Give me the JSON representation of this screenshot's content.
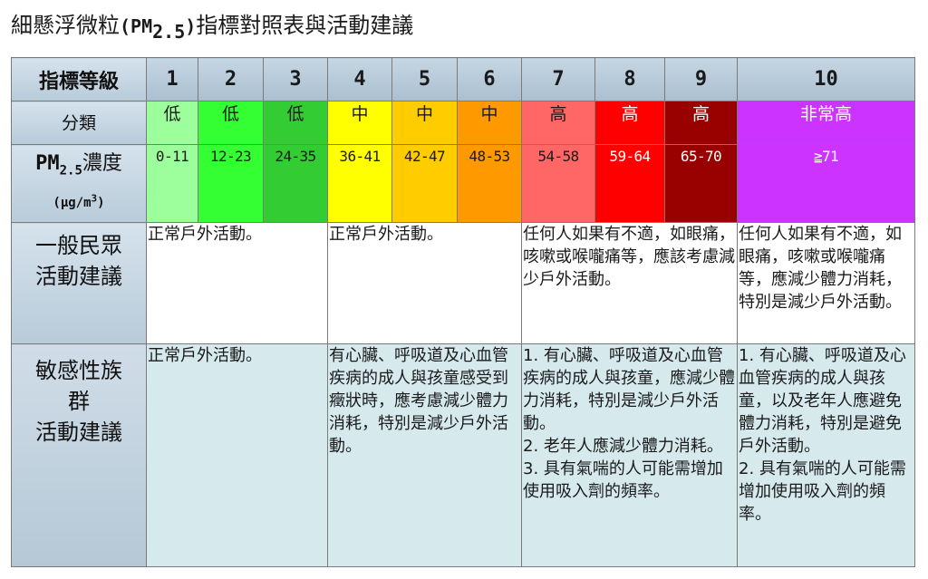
{
  "title": {
    "prefix": "細懸浮微粒",
    "paren_open": "(",
    "pm": "PM",
    "sub": "2.5",
    "paren_close": ")",
    "suffix": "指標對照表與活動建議"
  },
  "table": {
    "row_labels": {
      "level": "指標等級",
      "category": "分類",
      "conc_pm": "PM",
      "conc_sub": "2.5",
      "conc_word": "濃度",
      "conc_unit_a": "(μg/m",
      "conc_unit_sup": "3",
      "conc_unit_b": ")",
      "general_1": "一般民眾",
      "general_2": "活動建議",
      "sensitive_1": "敏感性族",
      "sensitive_2": "群",
      "sensitive_3": "活動建議"
    },
    "levels": [
      "1",
      "2",
      "3",
      "4",
      "5",
      "6",
      "7",
      "8",
      "9",
      "10"
    ],
    "categories": [
      "低",
      "低",
      "低",
      "中",
      "中",
      "中",
      "高",
      "高",
      "高",
      "非常高"
    ],
    "concentrations": [
      "0-11",
      "12-23",
      "24-35",
      "36-41",
      "42-47",
      "48-53",
      "54-58",
      "59-64",
      "65-70",
      "≧71"
    ],
    "colors": [
      "#9cff9c",
      "#33ff33",
      "#33cc33",
      "#ffff00",
      "#ffcc00",
      "#ff9900",
      "#ff6666",
      "#ff0000",
      "#990000",
      "#cc33ff"
    ],
    "general_advice": [
      "正常戶外活動。",
      "正常戶外活動。",
      "任何人如果有不適，如眼痛，咳嗽或喉嚨痛等，應該考慮減少戶外活動。",
      "任何人如果有不適，如眼痛，咳嗽或喉嚨痛等，應減少體力消耗，特別是減少戶外活動。"
    ],
    "sensitive_advice": [
      "正常戶外活動。",
      "有心臟、呼吸道及心血管疾病的成人與孩童感受到癥狀時，應考慮減少體力消耗，特別是減少戶外活動。",
      "1. 有心臟、呼吸道及心血管疾病的成人與孩童，應減少體力消耗，特別是減少戶外活動。\n2. 老年人應減少體力消耗。\n3. 具有氣喘的人可能需增加使用吸入劑的頻率。",
      "1. 有心臟、呼吸道及心血管疾病的成人與孩童，以及老年人應避免體力消耗，特別是避免戶外活動。\n2. 具有氣喘的人可能需增加使用吸入劑的頻率。"
    ]
  }
}
